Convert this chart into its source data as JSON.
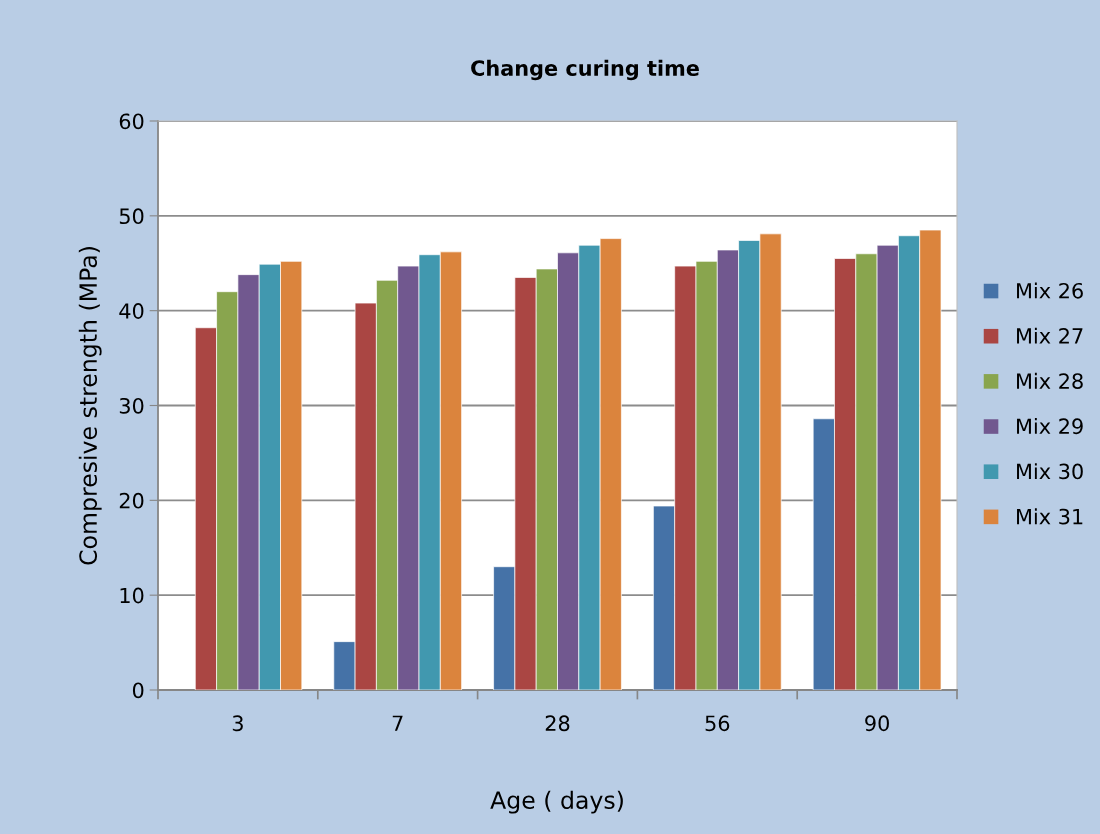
{
  "chart_data": {
    "type": "bar",
    "title": "Change curing time",
    "xlabel": "Age ( days)",
    "ylabel": "Compresive strength (MPa)",
    "categories": [
      "3",
      "7",
      "28",
      "56",
      "90"
    ],
    "series": [
      {
        "name": "Mix 26",
        "color": "#4572a7",
        "values": [
          null,
          5.1,
          13.0,
          19.4,
          28.6
        ]
      },
      {
        "name": "Mix 27",
        "color": "#aa4643",
        "values": [
          38.2,
          40.8,
          43.5,
          44.7,
          45.5
        ]
      },
      {
        "name": "Mix 28",
        "color": "#89a54e",
        "values": [
          42.0,
          43.2,
          44.4,
          45.2,
          46.0
        ]
      },
      {
        "name": "Mix 29",
        "color": "#71588f",
        "values": [
          43.8,
          44.7,
          46.1,
          46.4,
          46.9
        ]
      },
      {
        "name": "Mix 30",
        "color": "#4198af",
        "values": [
          44.9,
          45.9,
          46.9,
          47.4,
          47.9
        ]
      },
      {
        "name": "Mix 31",
        "color": "#db843d",
        "values": [
          45.2,
          46.2,
          47.6,
          48.1,
          48.5
        ]
      }
    ],
    "ylim": [
      0,
      60
    ],
    "yticks": [
      0,
      10,
      20,
      30,
      40,
      50,
      60
    ],
    "grid": "y",
    "legend": "right"
  }
}
